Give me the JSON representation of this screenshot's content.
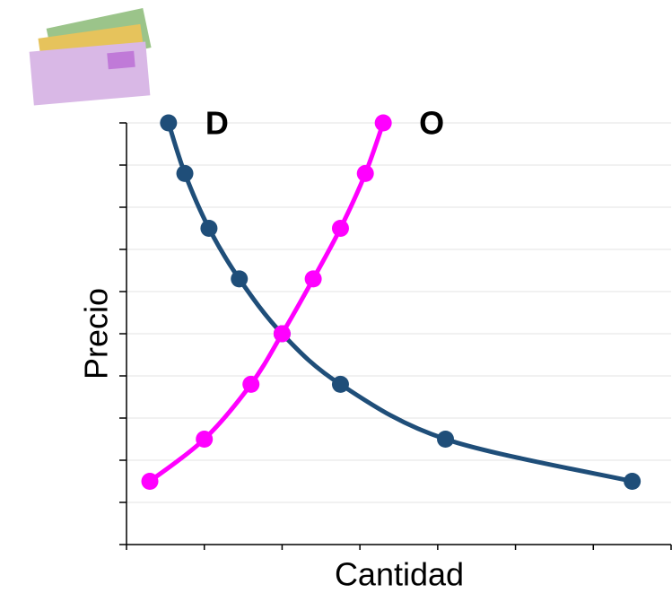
{
  "chart_data": {
    "type": "line",
    "x_label": "Cantidad",
    "y_label": "Precio",
    "xlim": [
      0,
      7
    ],
    "ylim": [
      0,
      10
    ],
    "xticks": [
      0,
      1,
      2,
      3,
      4,
      5,
      6,
      7
    ],
    "yticks": [
      0,
      1,
      2,
      3,
      4,
      5,
      6,
      7,
      8,
      9,
      10
    ],
    "grid": true,
    "smooth": true,
    "series": [
      {
        "name": "D",
        "color": "#1f4e79",
        "x": [
          0.54,
          0.75,
          1.06,
          1.45,
          2.0,
          2.75,
          4.1,
          6.5
        ],
        "values": [
          10,
          8.8,
          7.5,
          6.3,
          5.0,
          3.8,
          2.5,
          1.5
        ]
      },
      {
        "name": "O",
        "color": "#ff00ff",
        "x": [
          0.3,
          1.0,
          1.6,
          2.0,
          2.4,
          2.75,
          3.07,
          3.3
        ],
        "values": [
          1.5,
          2.5,
          3.8,
          5.0,
          6.3,
          7.5,
          8.8,
          10
        ]
      }
    ]
  }
}
